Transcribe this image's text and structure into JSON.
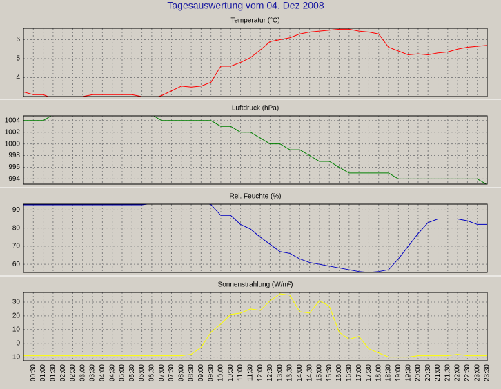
{
  "title": "Tagesauswertung vom 04. Dez 2008",
  "chart_data": [
    {
      "type": "line",
      "title": "Temperatur (°C)",
      "ylim": [
        3.0,
        6.6
      ],
      "yticks": [
        4,
        5,
        6
      ],
      "grid": true,
      "series": [
        {
          "name": "Temperatur",
          "color": "#ff0000",
          "values": [
            3.24,
            3.1,
            3.1,
            2.9,
            2.9,
            2.9,
            3.0,
            3.1,
            3.1,
            3.1,
            3.1,
            3.1,
            3.0,
            2.9,
            3.05,
            3.3,
            3.55,
            3.5,
            3.55,
            3.75,
            4.6,
            4.6,
            4.8,
            5.05,
            5.45,
            5.9,
            6.0,
            6.1,
            6.3,
            6.4,
            6.45,
            6.5,
            6.55,
            6.55,
            6.45,
            6.4,
            6.3,
            5.6,
            5.4,
            5.2,
            5.25,
            5.2,
            5.3,
            5.35,
            5.5,
            5.6,
            5.65,
            5.7
          ]
        }
      ]
    },
    {
      "type": "line",
      "title": "Luftdruck (hPa)",
      "ylim": [
        993.1,
        1004.8
      ],
      "yticks": [
        994,
        996,
        998,
        1000,
        1002,
        1004
      ],
      "grid": true,
      "series": [
        {
          "name": "Luftdruck",
          "color": "#008000",
          "values": [
            1004,
            1004,
            1004,
            1005,
            1005,
            1005,
            1005,
            1005,
            1005,
            1005,
            1005,
            1005,
            1005,
            1005,
            1004,
            1004,
            1004,
            1004,
            1004,
            1004,
            1003,
            1003,
            1002,
            1002,
            1001,
            1000,
            1000,
            999,
            999,
            998,
            997,
            997,
            996,
            995,
            995,
            995,
            995,
            995,
            994,
            994,
            994,
            994,
            994,
            994,
            994,
            994,
            994,
            993
          ]
        }
      ]
    },
    {
      "type": "line",
      "title": "Rel. Feuchte (%)",
      "ylim": [
        55.5,
        93.2
      ],
      "yticks": [
        60,
        70,
        80,
        90
      ],
      "grid": true,
      "series": [
        {
          "name": "Rel. Feuchte",
          "color": "#0000c0",
          "values": [
            92.8,
            92.8,
            92.8,
            92.8,
            92.8,
            92.8,
            92.8,
            92.8,
            92.8,
            92.8,
            92.8,
            92.8,
            92.8,
            93.5,
            94,
            94,
            94,
            94,
            94,
            93,
            87,
            87,
            82,
            79.5,
            75,
            71,
            67,
            66,
            63,
            61,
            60,
            59,
            58,
            57,
            56,
            55.5,
            56,
            57,
            63,
            70,
            77,
            83,
            85,
            85,
            85,
            84,
            82,
            82
          ]
        }
      ]
    },
    {
      "type": "line",
      "title": "Sonnenstrahlung (W/m²)",
      "ylim": [
        -12.7,
        37
      ],
      "yticks": [
        -10,
        0,
        10,
        20,
        30
      ],
      "grid": true,
      "categories": [
        null,
        "00:30",
        "01:00",
        "01:30",
        "02:00",
        "02:30",
        "03:00",
        "03:30",
        "04:00",
        "04:30",
        "05:00",
        "05:30",
        "06:00",
        "06:30",
        "07:00",
        "07:30",
        "08:00",
        "08:30",
        "09:00",
        "09:30",
        "10:00",
        "10:30",
        "11:00",
        "11:30",
        "12:00",
        "12:30",
        "13:00",
        "13:30",
        "14:00",
        "14:30",
        "15:00",
        "15:30",
        "16:00",
        "16:30",
        "17:00",
        "17:30",
        "18:00",
        "18:30",
        "19:00",
        "19:30",
        "20:00",
        "20:30",
        "21:00",
        "21:30",
        "22:00",
        "22:30",
        "23:00",
        "23:30"
      ],
      "series": [
        {
          "name": "Sonnenstrahlung",
          "color": "#ffff00",
          "values": [
            -9,
            -9,
            -9,
            -9,
            -9,
            -9,
            -9,
            -9,
            -9,
            -9,
            -9,
            -9,
            -9,
            -9,
            -9,
            -9,
            -9,
            -8,
            -3,
            8,
            14,
            21,
            22,
            25,
            24,
            31,
            36,
            35,
            23,
            22,
            31,
            27,
            8,
            3,
            5,
            -4,
            -7,
            -10,
            -10,
            -10,
            -9,
            -9,
            -9,
            -9,
            -8,
            -9,
            -9,
            -9
          ]
        }
      ]
    }
  ]
}
